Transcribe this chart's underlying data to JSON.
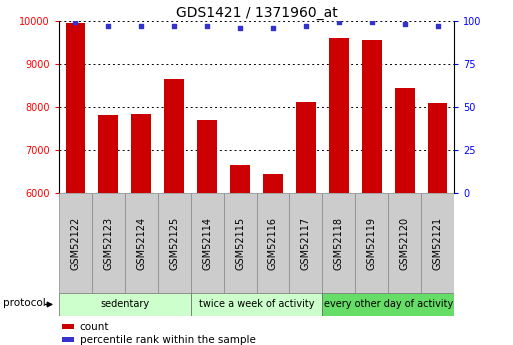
{
  "title": "GDS1421 / 1371960_at",
  "samples": [
    "GSM52122",
    "GSM52123",
    "GSM52124",
    "GSM52125",
    "GSM52114",
    "GSM52115",
    "GSM52116",
    "GSM52117",
    "GSM52118",
    "GSM52119",
    "GSM52120",
    "GSM52121"
  ],
  "counts": [
    9950,
    7820,
    7830,
    8640,
    7700,
    6660,
    6450,
    8120,
    9600,
    9560,
    8440,
    8100
  ],
  "percentile_ranks": [
    99,
    97,
    97,
    97,
    97,
    96,
    96,
    97,
    99,
    99,
    98,
    97
  ],
  "bar_color": "#cc0000",
  "dot_color": "#3333cc",
  "ylim_left": [
    6000,
    10000
  ],
  "ylim_right": [
    0,
    100
  ],
  "yticks_left": [
    6000,
    7000,
    8000,
    9000,
    10000
  ],
  "yticks_right": [
    0,
    25,
    50,
    75,
    100
  ],
  "group_defs": [
    {
      "start": 0,
      "end": 3,
      "label": "sedentary",
      "color": "#ccffcc"
    },
    {
      "start": 4,
      "end": 7,
      "label": "twice a week of activity",
      "color": "#ccffcc"
    },
    {
      "start": 8,
      "end": 11,
      "label": "every other day of activity",
      "color": "#66dd66"
    }
  ],
  "protocol_label": "protocol",
  "legend_count_label": "count",
  "legend_percentile_label": "percentile rank within the sample",
  "title_fontsize": 10,
  "tick_fontsize": 7,
  "bar_width": 0.6,
  "sample_box_color": "#cccccc",
  "sample_box_edge": "#888888"
}
